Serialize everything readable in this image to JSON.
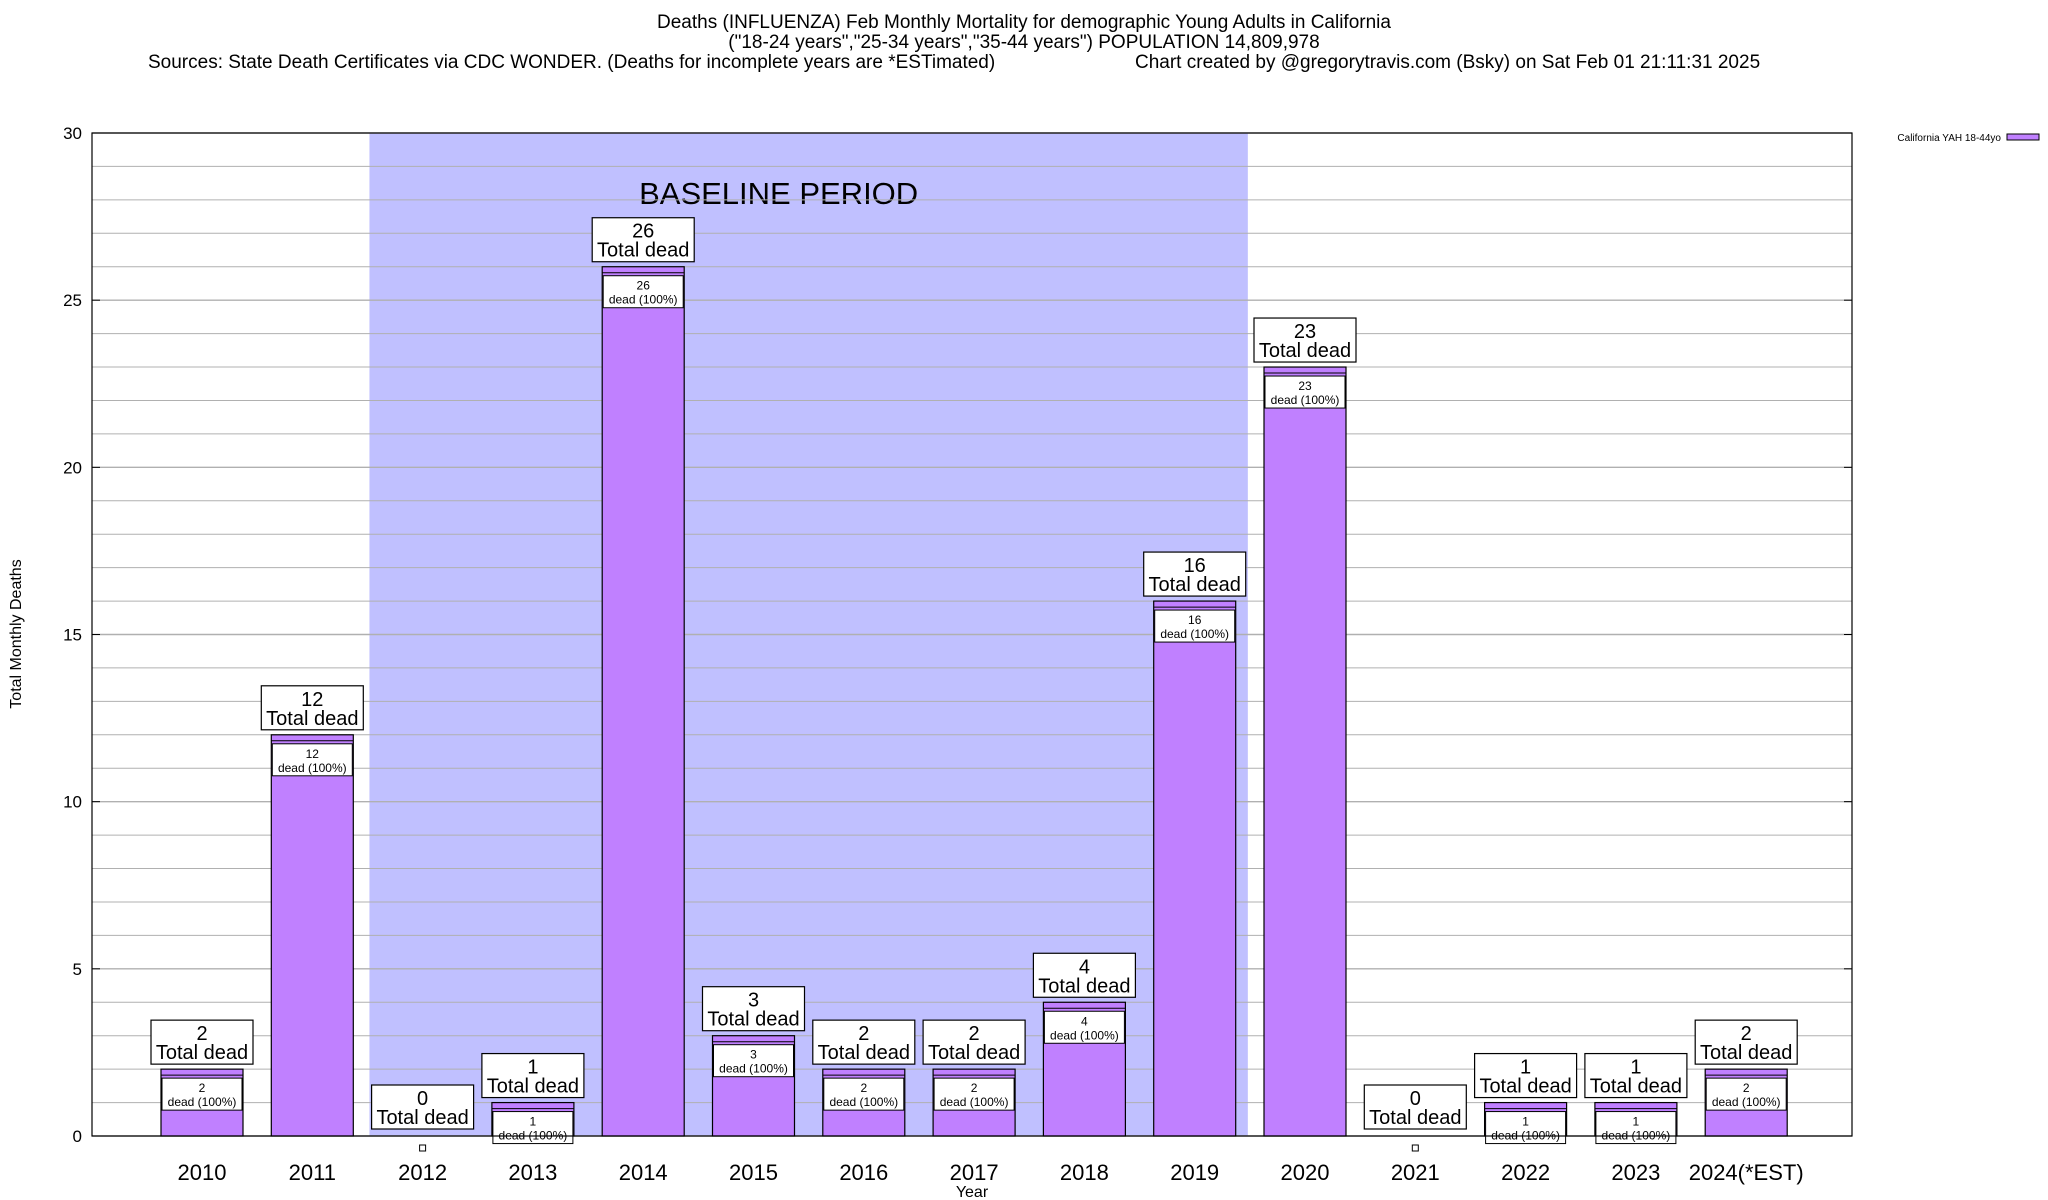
{
  "header": {
    "title": "Deaths (INFLUENZA) Feb Monthly Mortality for demographic Young Adults in California",
    "subtitle": "(\"18-24 years\",\"25-34 years\",\"35-44 years\") POPULATION 14,809,978",
    "sources": "Sources: State Death Certificates via CDC WONDER. (Deaths for incomplete years are *ESTimated)",
    "credit": "Chart created by @gregorytravis.com (Bsky) on Sat Feb 01 21:11:31 2025"
  },
  "colors": {
    "bar": "#c080ff",
    "baseline_band": "#c0c0ff",
    "grid": "#b0b0b0"
  },
  "chart_data": {
    "type": "bar",
    "title": "Deaths (INFLUENZA) Feb Monthly Mortality for demographic Young Adults in California",
    "xlabel": "Year",
    "ylabel": "Total Monthly Deaths",
    "ylim": [
      0,
      30
    ],
    "yticks": [
      0,
      5,
      10,
      15,
      20,
      25,
      30
    ],
    "grid": true,
    "legend_position": "top-right",
    "categories": [
      "2010",
      "2011",
      "2012",
      "2013",
      "2014",
      "2015",
      "2016",
      "2017",
      "2018",
      "2019",
      "2020",
      "2021",
      "2022",
      "2023",
      "2024(*EST)"
    ],
    "series": [
      {
        "name": "California YAH 18-44yo",
        "values": [
          2,
          12,
          0,
          1,
          26,
          3,
          2,
          2,
          4,
          16,
          23,
          0,
          1,
          1,
          2
        ]
      }
    ],
    "top_label_suffix": "Total dead",
    "inner_label_suffix": "dead (100%)",
    "baseline_period": {
      "label": "BASELINE PERIOD",
      "from": "2012",
      "to": "2019"
    }
  }
}
